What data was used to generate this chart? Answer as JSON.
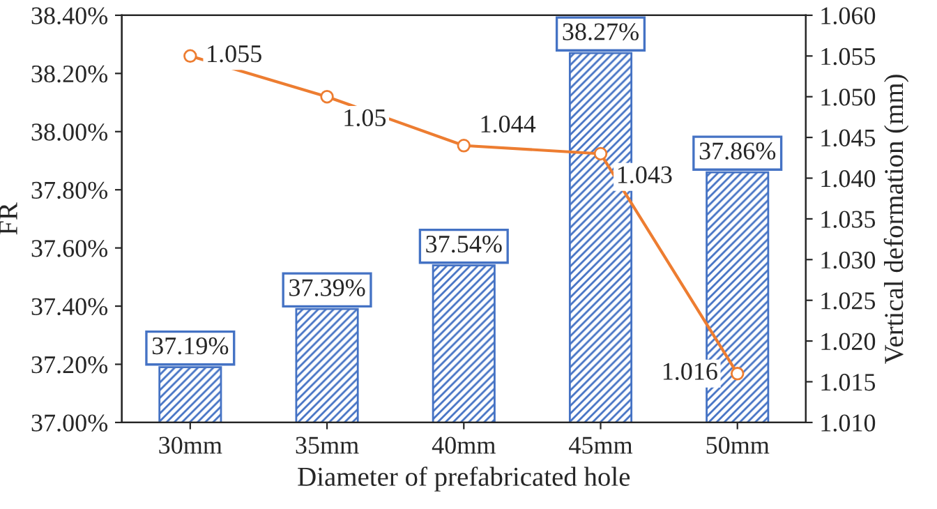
{
  "chart_data": {
    "type": "bar",
    "xlabel": "Diameter of prefabricated hole",
    "ylabel": "FR",
    "y2label": "Vertical deformation (mm)",
    "categories": [
      "30mm",
      "35mm",
      "40mm",
      "45mm",
      "50mm"
    ],
    "series": [
      {
        "color": "#4472c4",
        "values": [
          37.19,
          37.39,
          37.54,
          38.27,
          37.86
        ],
        "value_labels": [
          "37.19%",
          "37.39%",
          "37.54%",
          "38.27%",
          "37.86%"
        ]
      },
      {
        "type": "line",
        "axis": "y2",
        "color": "#ed7d31",
        "marker": "circle",
        "values": [
          1.055,
          1.05,
          1.044,
          1.043,
          1.016
        ],
        "value_labels": [
          "1.055",
          "1.05",
          "1.044",
          "1.043",
          "1.016"
        ]
      }
    ],
    "ylim": [
      37.0,
      38.4
    ],
    "yticks": [
      {
        "value": 37.0,
        "label": "37.00%"
      },
      {
        "value": 37.2,
        "label": "37.20%"
      },
      {
        "value": 37.4,
        "label": "37.40%"
      },
      {
        "value": 37.6,
        "label": "37.60%"
      },
      {
        "value": 37.8,
        "label": "37.80%"
      },
      {
        "value": 38.0,
        "label": "38.00%"
      },
      {
        "value": 38.2,
        "label": "38.20%"
      },
      {
        "value": 38.4,
        "label": "38.40%"
      }
    ],
    "y2lim": [
      1.01,
      1.06
    ],
    "y2ticks": [
      {
        "value": 1.01,
        "label": "1.010"
      },
      {
        "value": 1.015,
        "label": "1.015"
      },
      {
        "value": 1.02,
        "label": "1.020"
      },
      {
        "value": 1.025,
        "label": "1.025"
      },
      {
        "value": 1.03,
        "label": "1.030"
      },
      {
        "value": 1.035,
        "label": "1.035"
      },
      {
        "value": 1.04,
        "label": "1.040"
      },
      {
        "value": 1.045,
        "label": "1.045"
      },
      {
        "value": 1.05,
        "label": "1.050"
      },
      {
        "value": 1.055,
        "label": "1.055"
      },
      {
        "value": 1.06,
        "label": "1.060"
      }
    ]
  }
}
